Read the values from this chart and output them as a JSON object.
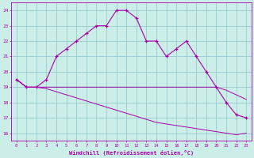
{
  "xlabel": "Windchill (Refroidissement éolien,°C)",
  "bg_color": "#cceee8",
  "line_color": "#aa00aa",
  "grid_color": "#99cccc",
  "x_ticks": [
    0,
    1,
    2,
    3,
    4,
    5,
    6,
    7,
    8,
    9,
    10,
    11,
    12,
    13,
    14,
    15,
    16,
    17,
    18,
    19,
    20,
    21,
    22,
    23
  ],
  "y_ticks": [
    16,
    17,
    18,
    19,
    20,
    21,
    22,
    23,
    24
  ],
  "ylim": [
    15.5,
    24.5
  ],
  "xlim": [
    -0.5,
    23.5
  ],
  "temp_line": [
    19.5,
    19.0,
    19.0,
    19.5,
    21.0,
    21.5,
    22.0,
    22.5,
    23.0,
    23.0,
    24.0,
    24.0,
    23.5,
    22.0,
    22.0,
    21.0,
    21.5,
    22.0,
    21.0,
    20.0,
    19.0,
    18.0,
    17.2,
    17.0
  ],
  "flat_line": [
    19.5,
    19.0,
    19.0,
    19.0,
    19.0,
    19.0,
    19.0,
    19.0,
    19.0,
    19.0,
    19.0,
    19.0,
    19.0,
    19.0,
    19.0,
    19.0,
    19.0,
    19.0,
    19.0,
    19.0,
    19.0,
    18.8,
    18.5,
    18.2
  ],
  "decline_line": [
    19.5,
    19.0,
    19.0,
    18.9,
    18.7,
    18.5,
    18.3,
    18.1,
    17.9,
    17.7,
    17.5,
    17.3,
    17.1,
    16.9,
    16.7,
    16.6,
    16.5,
    16.4,
    16.3,
    16.2,
    16.1,
    16.0,
    15.9,
    16.0
  ]
}
